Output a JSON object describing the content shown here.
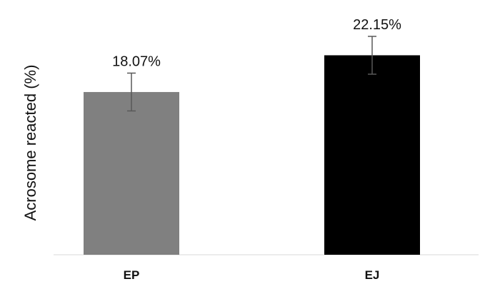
{
  "chart_data": {
    "type": "bar",
    "title": "",
    "xlabel": "",
    "ylabel": "Acrosome reacted (%)",
    "categories": [
      "EP",
      "EJ"
    ],
    "values": [
      18.07,
      22.15
    ],
    "data_labels": [
      "18.07%",
      "22.15%"
    ],
    "error": [
      2.1,
      2.1
    ],
    "colors": [
      "#808080",
      "#000000"
    ],
    "ylim": [
      0,
      25
    ],
    "grid": false,
    "legend": "none",
    "baseline_color": "#d9d9d9",
    "error_bar_color": "#595959"
  }
}
